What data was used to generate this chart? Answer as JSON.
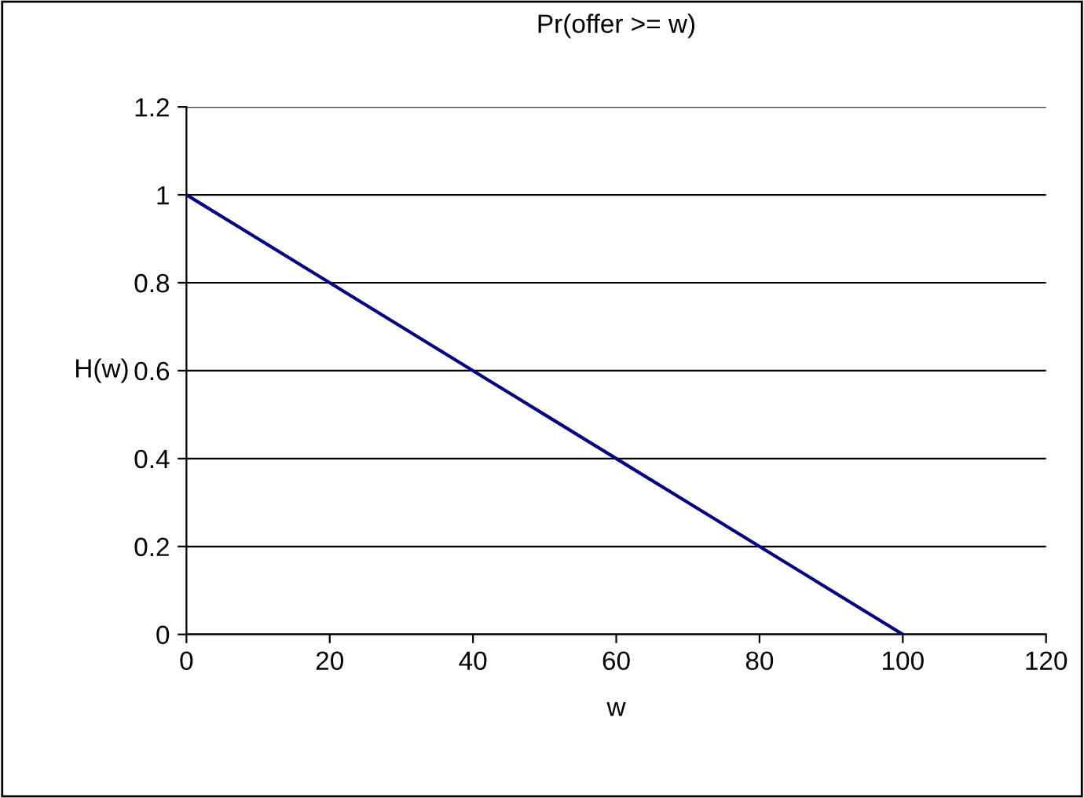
{
  "chart_data": {
    "type": "line",
    "title": "Pr(offer >= w)",
    "xlabel": "w",
    "ylabel": "H(w)",
    "x": [
      0,
      10,
      20,
      30,
      40,
      50,
      60,
      70,
      80,
      90,
      100
    ],
    "series": [
      {
        "color": "#000080",
        "values": [
          1,
          0.9,
          0.8,
          0.7,
          0.6,
          0.5,
          0.4,
          0.3,
          0.2,
          0.1,
          0
        ]
      }
    ],
    "xlim": [
      0,
      120
    ],
    "xticks": [
      0,
      20,
      40,
      60,
      80,
      100,
      120
    ],
    "ylim": [
      0,
      1.2
    ],
    "yticks": [
      0,
      0.2,
      0.4,
      0.6,
      0.8,
      1,
      1.2
    ],
    "grid": "y",
    "legend": false,
    "marker": "none",
    "line_style": "solid"
  }
}
